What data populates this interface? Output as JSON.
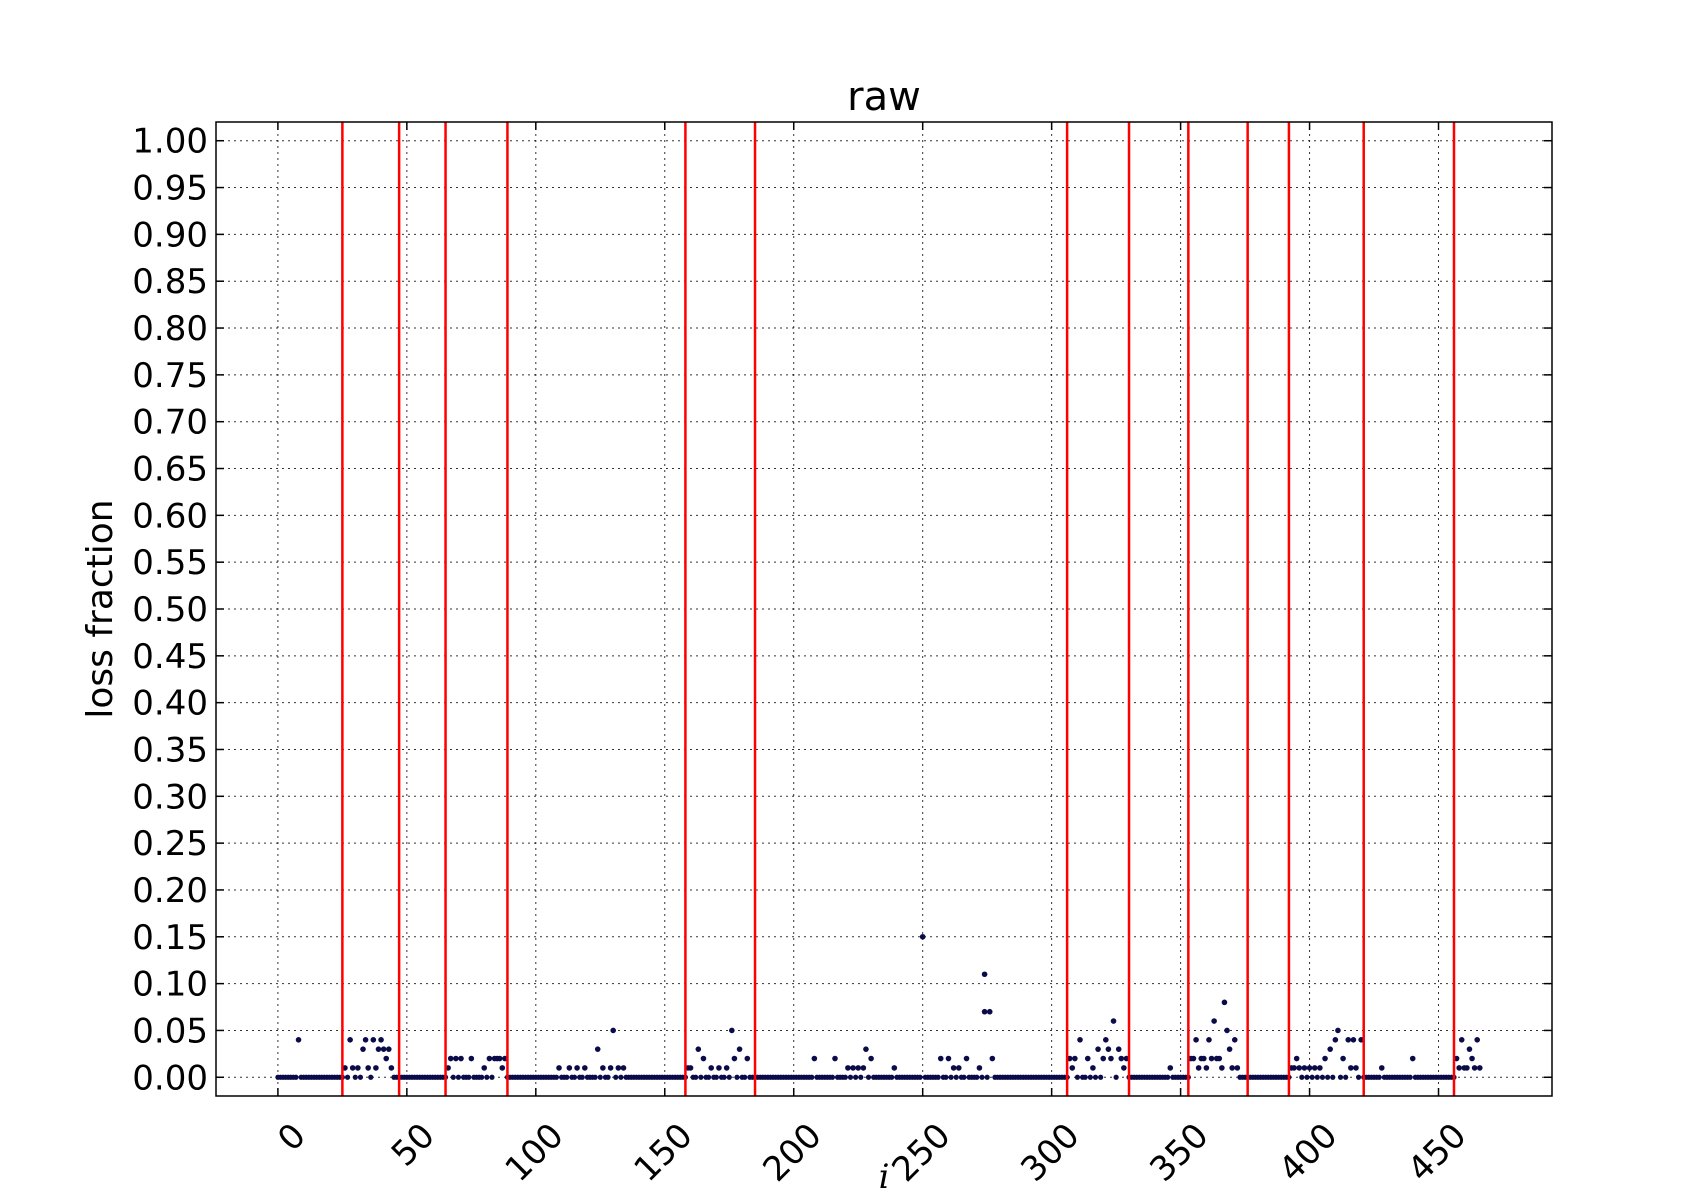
{
  "chart_data": {
    "type": "scatter",
    "title": "raw",
    "xlabel": "i",
    "ylabel": "loss fraction",
    "xlim": [
      -24,
      494
    ],
    "ylim": [
      -0.02,
      1.02
    ],
    "x_ticks": [
      "0",
      "50",
      "100",
      "150",
      "200",
      "250",
      "300",
      "350",
      "400",
      "450"
    ],
    "y_ticks": [
      "0.00",
      "0.05",
      "0.10",
      "0.15",
      "0.20",
      "0.25",
      "0.30",
      "0.35",
      "0.40",
      "0.45",
      "0.50",
      "0.55",
      "0.60",
      "0.65",
      "0.70",
      "0.75",
      "0.80",
      "0.85",
      "0.90",
      "0.95",
      "1.00"
    ],
    "grid": true,
    "marker_color": "#0b0b4a",
    "vline_color": "#ff0000",
    "vlines": [
      25,
      47,
      65,
      89,
      158,
      185,
      306,
      330,
      353,
      376,
      392,
      421,
      456
    ],
    "n_points": 467,
    "points": [
      [
        8,
        0.04
      ],
      [
        26,
        0.01
      ],
      [
        28,
        0.04
      ],
      [
        29,
        0.01
      ],
      [
        31,
        0.01
      ],
      [
        33,
        0.03
      ],
      [
        34,
        0.04
      ],
      [
        35,
        0.01
      ],
      [
        37,
        0.04
      ],
      [
        38,
        0.01
      ],
      [
        39,
        0.03
      ],
      [
        40,
        0.04
      ],
      [
        41,
        0.03
      ],
      [
        42,
        0.02
      ],
      [
        43,
        0.03
      ],
      [
        44,
        0.01
      ],
      [
        66,
        0.01
      ],
      [
        67,
        0.02
      ],
      [
        69,
        0.02
      ],
      [
        71,
        0.02
      ],
      [
        75,
        0.02
      ],
      [
        80,
        0.01
      ],
      [
        82,
        0.02
      ],
      [
        84,
        0.02
      ],
      [
        85,
        0.02
      ],
      [
        86,
        0.02
      ],
      [
        87,
        0.01
      ],
      [
        88,
        0.02
      ],
      [
        109,
        0.01
      ],
      [
        113,
        0.01
      ],
      [
        116,
        0.01
      ],
      [
        119,
        0.01
      ],
      [
        124,
        0.03
      ],
      [
        126,
        0.01
      ],
      [
        129,
        0.01
      ],
      [
        130,
        0.05
      ],
      [
        132,
        0.01
      ],
      [
        134,
        0.01
      ],
      [
        159,
        0.01
      ],
      [
        160,
        0.01
      ],
      [
        163,
        0.03
      ],
      [
        165,
        0.02
      ],
      [
        168,
        0.01
      ],
      [
        171,
        0.01
      ],
      [
        174,
        0.01
      ],
      [
        176,
        0.05
      ],
      [
        177,
        0.02
      ],
      [
        179,
        0.03
      ],
      [
        182,
        0.02
      ],
      [
        208,
        0.02
      ],
      [
        216,
        0.02
      ],
      [
        221,
        0.01
      ],
      [
        223,
        0.01
      ],
      [
        225,
        0.01
      ],
      [
        227,
        0.01
      ],
      [
        228,
        0.03
      ],
      [
        230,
        0.02
      ],
      [
        239,
        0.01
      ],
      [
        250,
        0.15
      ],
      [
        257,
        0.02
      ],
      [
        260,
        0.02
      ],
      [
        262,
        0.01
      ],
      [
        264,
        0.01
      ],
      [
        267,
        0.02
      ],
      [
        272,
        0.01
      ],
      [
        274,
        0.11
      ],
      [
        274,
        0.07
      ],
      [
        276,
        0.07
      ],
      [
        277,
        0.02
      ],
      [
        307,
        0.02
      ],
      [
        308,
        0.01
      ],
      [
        309,
        0.02
      ],
      [
        311,
        0.04
      ],
      [
        314,
        0.02
      ],
      [
        316,
        0.01
      ],
      [
        318,
        0.03
      ],
      [
        320,
        0.02
      ],
      [
        321,
        0.04
      ],
      [
        322,
        0.03
      ],
      [
        323,
        0.02
      ],
      [
        324,
        0.06
      ],
      [
        326,
        0.03
      ],
      [
        327,
        0.02
      ],
      [
        328,
        0.01
      ],
      [
        329,
        0.02
      ],
      [
        346,
        0.01
      ],
      [
        354,
        0.02
      ],
      [
        355,
        0.02
      ],
      [
        356,
        0.04
      ],
      [
        357,
        0.01
      ],
      [
        358,
        0.02
      ],
      [
        359,
        0.02
      ],
      [
        360,
        0.01
      ],
      [
        361,
        0.04
      ],
      [
        362,
        0.02
      ],
      [
        363,
        0.06
      ],
      [
        364,
        0.02
      ],
      [
        365,
        0.02
      ],
      [
        366,
        0.01
      ],
      [
        367,
        0.08
      ],
      [
        368,
        0.05
      ],
      [
        369,
        0.03
      ],
      [
        370,
        0.01
      ],
      [
        371,
        0.04
      ],
      [
        372,
        0.01
      ],
      [
        393,
        0.01
      ],
      [
        394,
        0.01
      ],
      [
        395,
        0.02
      ],
      [
        396,
        0.01
      ],
      [
        398,
        0.01
      ],
      [
        400,
        0.01
      ],
      [
        402,
        0.01
      ],
      [
        404,
        0.01
      ],
      [
        406,
        0.02
      ],
      [
        408,
        0.03
      ],
      [
        410,
        0.04
      ],
      [
        411,
        0.05
      ],
      [
        413,
        0.02
      ],
      [
        415,
        0.04
      ],
      [
        416,
        0.01
      ],
      [
        417,
        0.04
      ],
      [
        418,
        0.01
      ],
      [
        420,
        0.04
      ],
      [
        428,
        0.01
      ],
      [
        440,
        0.02
      ],
      [
        457,
        0.02
      ],
      [
        458,
        0.01
      ],
      [
        459,
        0.04
      ],
      [
        460,
        0.01
      ],
      [
        461,
        0.01
      ],
      [
        462,
        0.03
      ],
      [
        463,
        0.02
      ],
      [
        464,
        0.01
      ],
      [
        465,
        0.04
      ],
      [
        466,
        0.01
      ]
    ]
  }
}
